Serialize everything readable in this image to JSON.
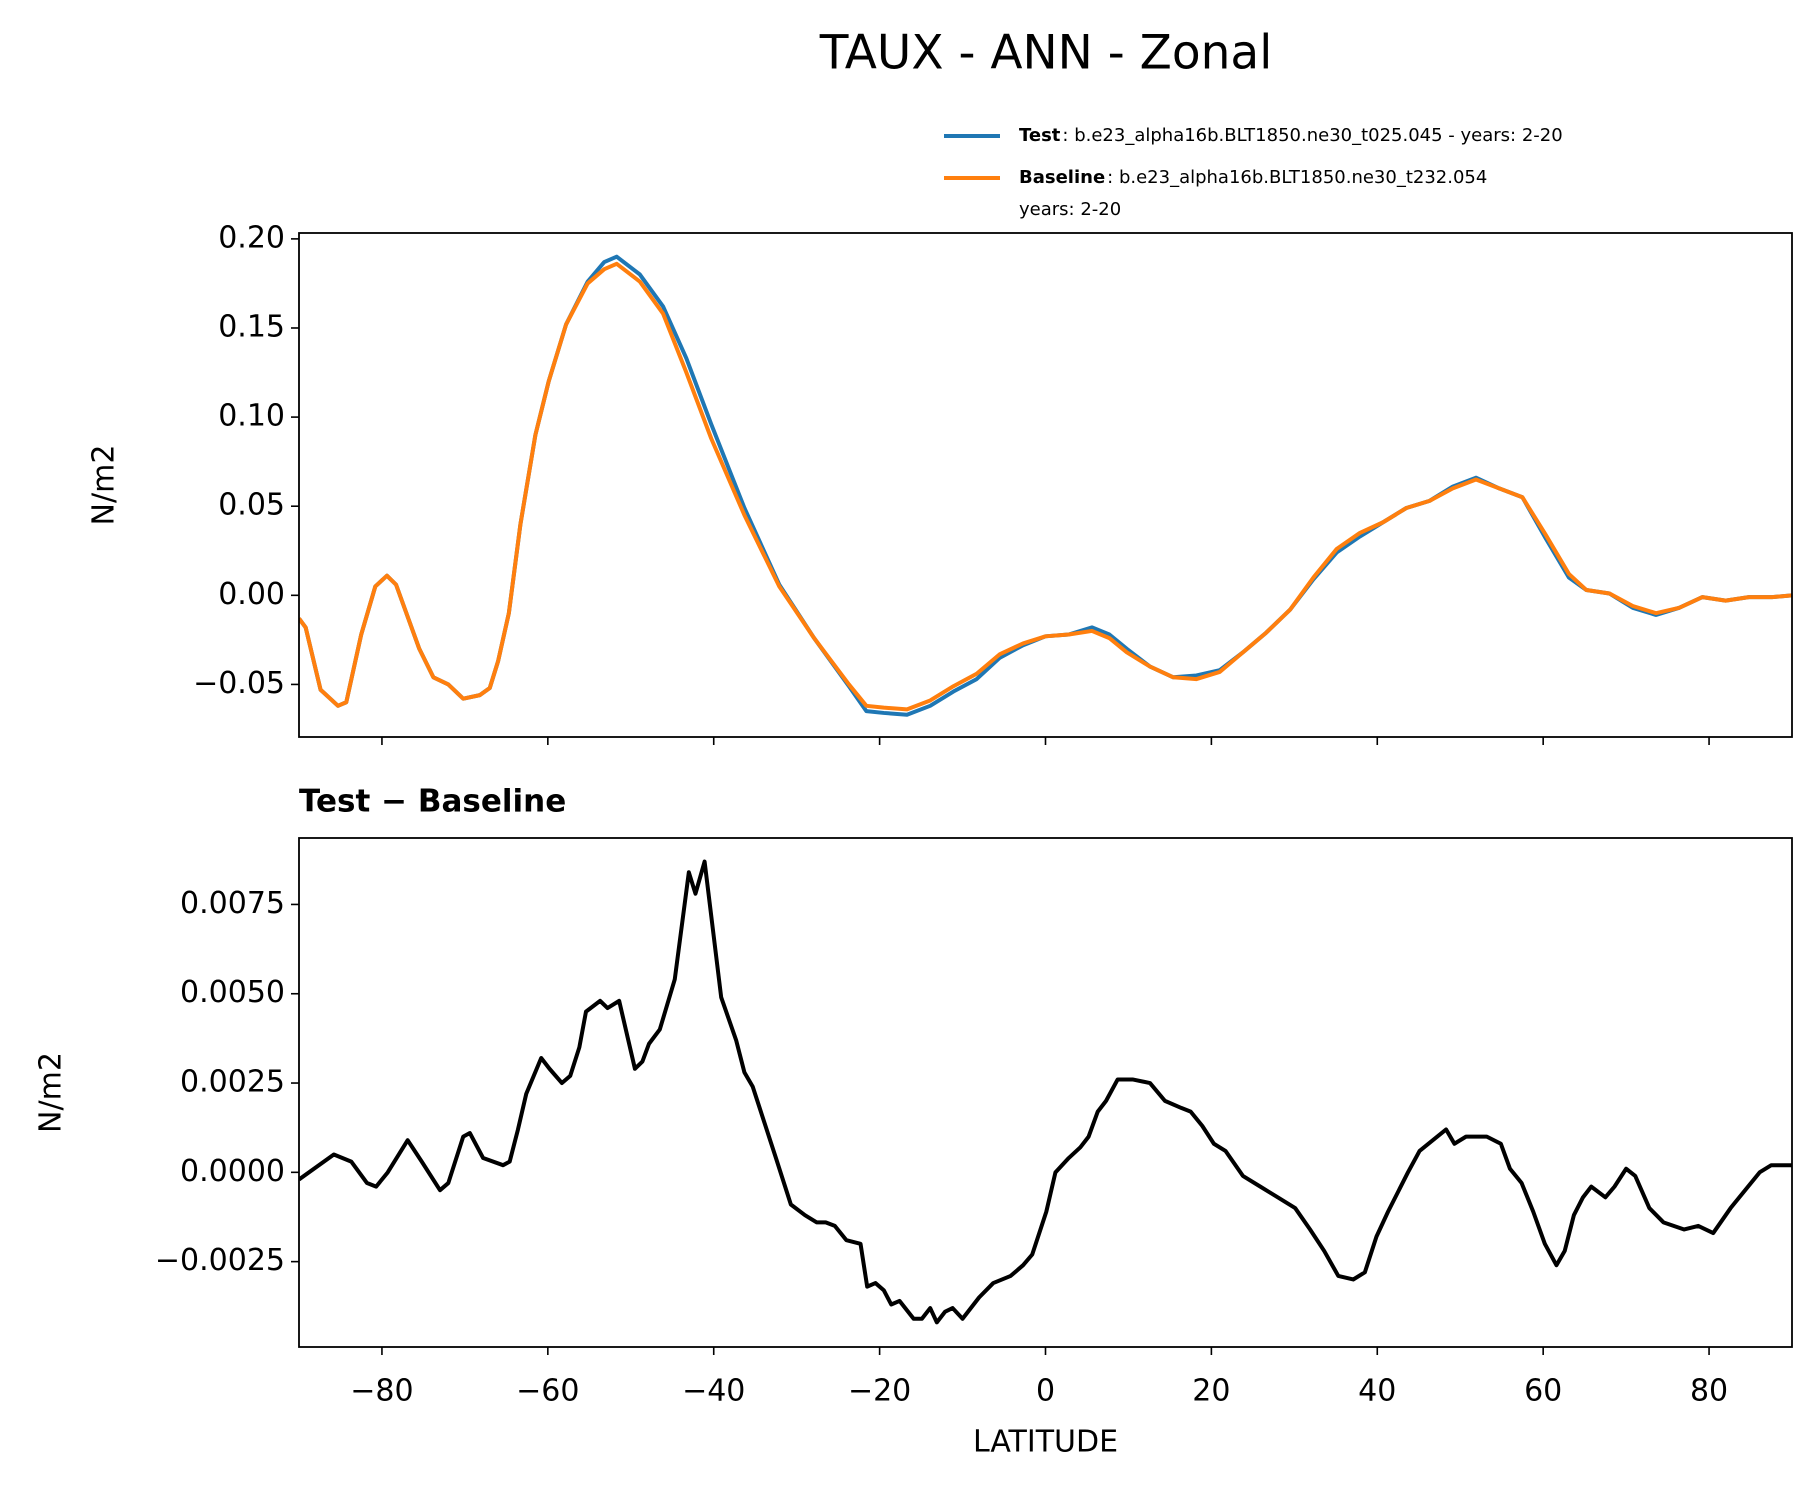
{
  "chart_data": [
    {
      "type": "line",
      "title": "TAUX - ANN - Zonal",
      "ylabel": "N/m2",
      "x": [
        -90,
        -89.2,
        -87.4,
        -85.3,
        -84.3,
        -82.5,
        -80.8,
        -79.4,
        -78.3,
        -75.5,
        -73.8,
        -72,
        -70.2,
        -68.2,
        -67,
        -66,
        -64.7,
        -63.3,
        -61.5,
        -59.9,
        -57.8,
        -55.2,
        -53.2,
        -51.7,
        -48.9,
        -46.1,
        -43.3,
        -40.3,
        -36.3,
        -32.1,
        -27.9,
        -23.7,
        -21.6,
        -19.5,
        -16.7,
        -13.9,
        -11.1,
        -8.3,
        -5.5,
        -2.7,
        0,
        2.8,
        5.6,
        7.7,
        9.8,
        12.6,
        15.4,
        18.2,
        21,
        23.8,
        26.6,
        29.5,
        32.3,
        35.1,
        37.9,
        40.7,
        43.5,
        46.3,
        49.1,
        51.9,
        54.7,
        57.5,
        60.3,
        63.1,
        65.2,
        68,
        70.8,
        73.6,
        76.4,
        79.2,
        82,
        84.8,
        87.6,
        90
      ],
      "series": [
        {
          "name": "Test",
          "description": [
            ": b.e23_alpha16b.BLT1850.ne30_t025.045 - years: 2-20"
          ],
          "color": "#1f77b4",
          "values": [
            -0.013,
            -0.018,
            -0.053,
            -0.062,
            -0.06,
            -0.022,
            0.005,
            0.011,
            0.006,
            -0.03,
            -0.046,
            -0.05,
            -0.058,
            -0.056,
            -0.052,
            -0.037,
            -0.01,
            0.04,
            0.09,
            0.12,
            0.152,
            0.176,
            0.187,
            0.19,
            0.18,
            0.162,
            0.133,
            0.096,
            0.049,
            0.006,
            -0.024,
            -0.051,
            -0.065,
            -0.066,
            -0.067,
            -0.062,
            -0.054,
            -0.047,
            -0.035,
            -0.028,
            -0.023,
            -0.022,
            -0.018,
            -0.022,
            -0.03,
            -0.04,
            -0.046,
            -0.045,
            -0.042,
            -0.032,
            -0.021,
            -0.008,
            0.009,
            0.024,
            0.033,
            0.041,
            0.049,
            0.053,
            0.061,
            0.066,
            0.06,
            0.055,
            0.032,
            0.01,
            0.003,
            0.001,
            -0.007,
            -0.011,
            -0.007,
            -0.001,
            -0.003,
            -0.001,
            -0.001,
            0.0
          ]
        },
        {
          "name": "Baseline",
          "description": [
            ": b.e23_alpha16b.BLT1850.ne30_t232.054",
            "years: 2-20"
          ],
          "color": "#ff7f0e",
          "values": [
            -0.013,
            -0.018,
            -0.053,
            -0.062,
            -0.06,
            -0.022,
            0.005,
            0.011,
            0.006,
            -0.03,
            -0.046,
            -0.05,
            -0.058,
            -0.056,
            -0.052,
            -0.037,
            -0.01,
            0.04,
            0.09,
            0.12,
            0.152,
            0.175,
            0.183,
            0.186,
            0.176,
            0.158,
            0.125,
            0.088,
            0.045,
            0.005,
            -0.024,
            -0.05,
            -0.062,
            -0.063,
            -0.064,
            -0.059,
            -0.051,
            -0.044,
            -0.033,
            -0.027,
            -0.023,
            -0.022,
            -0.02,
            -0.024,
            -0.032,
            -0.04,
            -0.046,
            -0.047,
            -0.043,
            -0.032,
            -0.021,
            -0.008,
            0.01,
            0.026,
            0.035,
            0.041,
            0.049,
            0.053,
            0.06,
            0.065,
            0.06,
            0.055,
            0.034,
            0.012,
            0.003,
            0.001,
            -0.006,
            -0.01,
            -0.007,
            -0.001,
            -0.003,
            -0.001,
            -0.001,
            0.0
          ]
        }
      ],
      "xlim": [
        -90,
        90
      ],
      "xticks": [
        -80,
        -60,
        -40,
        -20,
        0,
        20,
        40,
        60,
        80
      ],
      "ylim": [
        -0.0795,
        0.2033
      ],
      "yticks": [
        {
          "value": -0.05,
          "label": "−0.05"
        },
        {
          "value": 0,
          "label": "0.00"
        },
        {
          "value": 0.05,
          "label": "0.05"
        },
        {
          "value": 0.1,
          "label": "0.10"
        },
        {
          "value": 0.15,
          "label": "0.15"
        },
        {
          "value": 0.2,
          "label": "0.20"
        }
      ]
    },
    {
      "type": "line",
      "subtitle": "Test − Baseline",
      "ylabel": "N/m2",
      "xlabel": "LATITUDE",
      "x": [
        -90,
        -85.8,
        -83.7,
        -81.8,
        -80.7,
        -79.3,
        -76.9,
        -75.2,
        -73,
        -72,
        -70.2,
        -69.4,
        -67.8,
        -65.4,
        -64.6,
        -63.6,
        -62.6,
        -60.8,
        -59.8,
        -58.3,
        -57.3,
        -56.2,
        -55.4,
        -53.7,
        -52.8,
        -51.4,
        -49.5,
        -48.6,
        -47.8,
        -46.5,
        -44.7,
        -43,
        -42.2,
        -41.1,
        -39.1,
        -37.3,
        -36.3,
        -35.3,
        -32.5,
        -30.7,
        -29,
        -27.6,
        -26.5,
        -25.4,
        -24,
        -22.3,
        -21.5,
        -20.5,
        -19.5,
        -18.6,
        -17.6,
        -15.9,
        -14.9,
        -13.9,
        -13.1,
        -12.1,
        -11.2,
        -10,
        -8,
        -6.3,
        -4.2,
        -2.7,
        -1.6,
        0.1,
        1.2,
        2.8,
        4.2,
        5.2,
        6.3,
        7.3,
        8.7,
        10.5,
        12.6,
        14.4,
        16.4,
        17.5,
        18.9,
        20.3,
        21.7,
        23.8,
        25.9,
        28,
        30.1,
        31.9,
        33.6,
        35.3,
        37.1,
        38.5,
        39.9,
        41.3,
        43.7,
        45.1,
        48.3,
        49.3,
        50.7,
        53.2,
        54.9,
        56,
        57.4,
        58.8,
        60.2,
        61.6,
        62.6,
        63.7,
        64.8,
        65.8,
        67.5,
        68.6,
        70,
        71.1,
        72.8,
        74.5,
        77,
        78.7,
        80.5,
        82.6,
        84,
        86.1,
        87.5,
        90
      ],
      "series": [
        {
          "name": "Test − Baseline",
          "color": "#000000",
          "values": [
            -0.0002,
            0.0005,
            0.0003,
            -0.0003,
            -0.0004,
            0,
            0.0009,
            0.0003,
            -0.0005,
            -0.0003,
            0.001,
            0.0011,
            0.0004,
            0.0002,
            0.0003,
            0.0012,
            0.0022,
            0.0032,
            0.0029,
            0.0025,
            0.0027,
            0.0035,
            0.0045,
            0.0048,
            0.0046,
            0.0048,
            0.0029,
            0.0031,
            0.0036,
            0.004,
            0.0054,
            0.0084,
            0.0078,
            0.0087,
            0.0049,
            0.0037,
            0.0028,
            0.0024,
            0.0004,
            -0.0009,
            -0.0012,
            -0.0014,
            -0.0014,
            -0.0015,
            -0.0019,
            -0.002,
            -0.0032,
            -0.0031,
            -0.0033,
            -0.0037,
            -0.0036,
            -0.0041,
            -0.0041,
            -0.0038,
            -0.0042,
            -0.0039,
            -0.0038,
            -0.0041,
            -0.0035,
            -0.0031,
            -0.0029,
            -0.0026,
            -0.0023,
            -0.0011,
            0,
            0.0004,
            0.0007,
            0.001,
            0.0017,
            0.002,
            0.0026,
            0.0026,
            0.0025,
            0.002,
            0.0018,
            0.0017,
            0.0013,
            0.0008,
            0.0006,
            -0.0001,
            -0.0004,
            -0.0007,
            -0.001,
            -0.0016,
            -0.0022,
            -0.0029,
            -0.003,
            -0.0028,
            -0.0018,
            -0.0011,
            0,
            0.0006,
            0.0012,
            0.0008,
            0.001,
            0.001,
            0.0008,
            0.0001,
            -0.0003,
            -0.0011,
            -0.002,
            -0.0026,
            -0.0022,
            -0.0012,
            -0.0007,
            -0.0004,
            -0.0007,
            -0.0004,
            0.0001,
            -0.0001,
            -0.001,
            -0.0014,
            -0.0016,
            -0.0015,
            -0.0017,
            -0.001,
            -0.0006,
            0,
            0.0002,
            0.0002
          ]
        }
      ],
      "xlim": [
        -90,
        90
      ],
      "xticks": [
        {
          "value": -80,
          "label": "−80"
        },
        {
          "value": -60,
          "label": "−60"
        },
        {
          "value": -40,
          "label": "−40"
        },
        {
          "value": -20,
          "label": "−20"
        },
        0,
        20,
        40,
        60,
        80
      ],
      "ylim": [
        -0.00489,
        0.00936
      ],
      "yticks": [
        {
          "value": -0.0025,
          "label": "−0.0025"
        },
        {
          "value": 0,
          "label": "0.0000"
        },
        {
          "value": 0.0025,
          "label": "0.0025"
        },
        {
          "value": 0.005,
          "label": "0.0050"
        },
        {
          "value": 0.0075,
          "label": "0.0075"
        }
      ]
    }
  ]
}
